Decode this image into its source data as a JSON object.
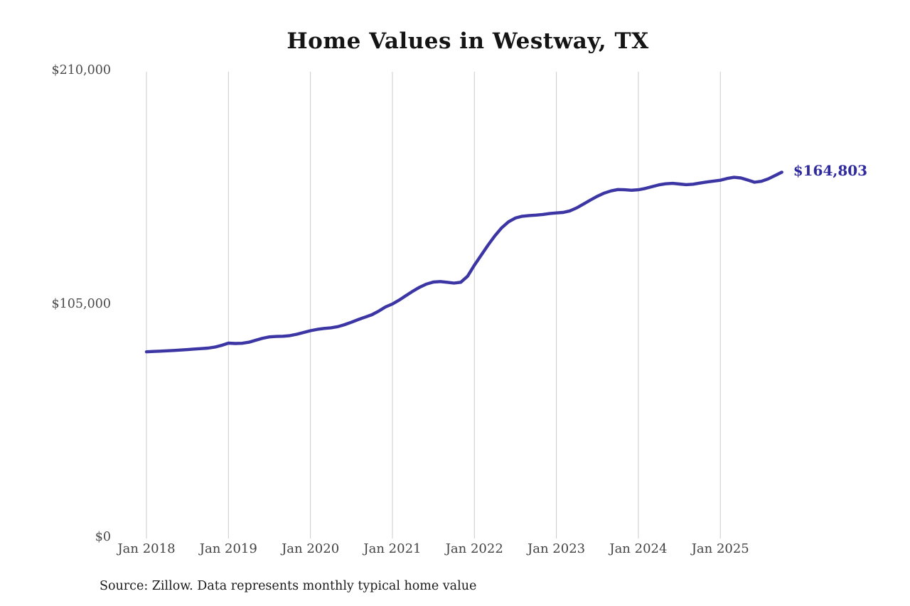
{
  "chart_data": {
    "type": "line",
    "title": "Home Values in Westway, TX",
    "source_note": "Source: Zillow. Data represents monthly typical home value",
    "end_label": "$164,803",
    "final_value": 164803,
    "ylabel": "",
    "xlabel": "",
    "ylim": [
      0,
      210000
    ],
    "grid": "vertical-yearly",
    "legend": "none",
    "line_color": "#3c36a4",
    "end_label_color": "#2f2a9e",
    "gridline_color": "#cbcbcb",
    "y_tick_labels": [
      "$210,000",
      "$105,000",
      "$0"
    ],
    "y_tick_values": [
      210000,
      105000,
      0
    ],
    "x_tick_labels": [
      "Jan 2018",
      "Jan 2019",
      "Jan 2020",
      "Jan 2021",
      "Jan 2022",
      "Jan 2023",
      "Jan 2024",
      "Jan 2025"
    ],
    "series_name": "Monthly typical home value",
    "x": [
      "2018-01",
      "2018-02",
      "2018-03",
      "2018-04",
      "2018-05",
      "2018-06",
      "2018-07",
      "2018-08",
      "2018-09",
      "2018-10",
      "2018-11",
      "2018-12",
      "2019-01",
      "2019-02",
      "2019-03",
      "2019-04",
      "2019-05",
      "2019-06",
      "2019-07",
      "2019-08",
      "2019-09",
      "2019-10",
      "2019-11",
      "2019-12",
      "2020-01",
      "2020-02",
      "2020-03",
      "2020-04",
      "2020-05",
      "2020-06",
      "2020-07",
      "2020-08",
      "2020-09",
      "2020-10",
      "2020-11",
      "2020-12",
      "2021-01",
      "2021-02",
      "2021-03",
      "2021-04",
      "2021-05",
      "2021-06",
      "2021-07",
      "2021-08",
      "2021-09",
      "2021-10",
      "2021-11",
      "2021-12",
      "2022-01",
      "2022-02",
      "2022-03",
      "2022-04",
      "2022-05",
      "2022-06",
      "2022-07",
      "2022-08",
      "2022-09",
      "2022-10",
      "2022-11",
      "2022-12",
      "2023-01",
      "2023-02",
      "2023-03",
      "2023-04",
      "2023-05",
      "2023-06",
      "2023-07",
      "2023-08",
      "2023-09",
      "2023-10",
      "2023-11",
      "2023-12",
      "2024-01",
      "2024-02",
      "2024-03",
      "2024-04",
      "2024-05",
      "2024-06",
      "2024-07",
      "2024-08",
      "2024-09",
      "2024-10",
      "2024-11",
      "2024-12",
      "2025-01",
      "2025-02",
      "2025-03",
      "2025-04",
      "2025-05",
      "2025-06",
      "2025-07",
      "2025-08",
      "2025-09",
      "2025-10"
    ],
    "values": [
      84000,
      84150,
      84300,
      84450,
      84600,
      84800,
      85000,
      85250,
      85450,
      85650,
      86100,
      86900,
      87900,
      87750,
      87850,
      88300,
      89200,
      90100,
      90700,
      90900,
      91000,
      91300,
      91900,
      92700,
      93500,
      94100,
      94500,
      94800,
      95300,
      96200,
      97300,
      98500,
      99600,
      100700,
      102300,
      104200,
      105500,
      107300,
      109300,
      111300,
      113100,
      114500,
      115400,
      115600,
      115300,
      114900,
      115300,
      118000,
      123000,
      127500,
      132000,
      136200,
      139800,
      142500,
      144200,
      145000,
      145300,
      145500,
      145800,
      146200,
      146500,
      146700,
      147400,
      148800,
      150500,
      152300,
      154000,
      155400,
      156400,
      157000,
      156900,
      156700,
      156900,
      157500,
      158300,
      159100,
      159600,
      159800,
      159500,
      159200,
      159400,
      159900,
      160400,
      160800,
      161200,
      162000,
      162500,
      162200,
      161300,
      160300,
      160700,
      161800,
      163300,
      164803
    ]
  }
}
